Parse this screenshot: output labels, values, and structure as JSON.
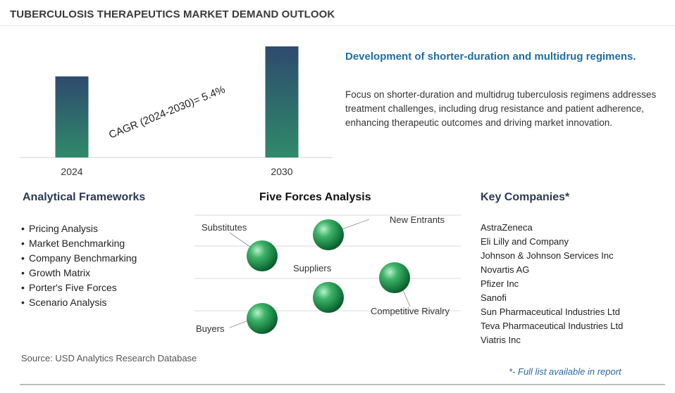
{
  "title": "TUBERCULOSIS THERAPEUTICS MARKET DEMAND OUTLOOK",
  "chart_data": {
    "type": "bar",
    "categories": [
      "2024",
      "2030"
    ],
    "values": [
      0.73,
      1.0
    ],
    "annotation": "CAGR (2024-2030)=  5.4%",
    "colors": {
      "bar_top": "#2e4a6e",
      "bar_bottom": "#2f8a6a",
      "axis": "#d0d0d0"
    }
  },
  "highlight": {
    "heading": "Development of shorter-duration and multidrug regimens.",
    "body": "Focus on shorter-duration and multidrug tuberculosis regimens addresses treatment challenges, including drug resistance and patient adherence, enhancing therapeutic outcomes and driving market innovation."
  },
  "analytical_frameworks": {
    "heading": "Analytical Frameworks",
    "items": [
      "Pricing Analysis",
      "Market Benchmarking",
      "Company Benchmarking",
      "Growth Matrix",
      "Porter's Five Forces",
      "Scenario Analysis"
    ]
  },
  "five_forces": {
    "heading": "Five Forces Analysis",
    "labels": {
      "substitutes": "Substitutes",
      "new_entrants": "New Entrants",
      "suppliers": "Suppliers",
      "competitive_rivalry": "Competitive Rivalry",
      "buyers": "Buyers"
    }
  },
  "key_companies": {
    "heading": "Key Companies*",
    "items": [
      "AstraZeneca",
      "Eli Lilly and Company",
      "Johnson & Johnson Services Inc",
      "Novartis AG",
      "Pfizer Inc",
      "Sanofi",
      "Sun Pharmaceutical Industries Ltd",
      "Teva Pharmaceutical Industries Ltd",
      "Viatris Inc"
    ]
  },
  "source": "Source: USD Analytics Research Database",
  "footnote": "*- Full list available in report"
}
